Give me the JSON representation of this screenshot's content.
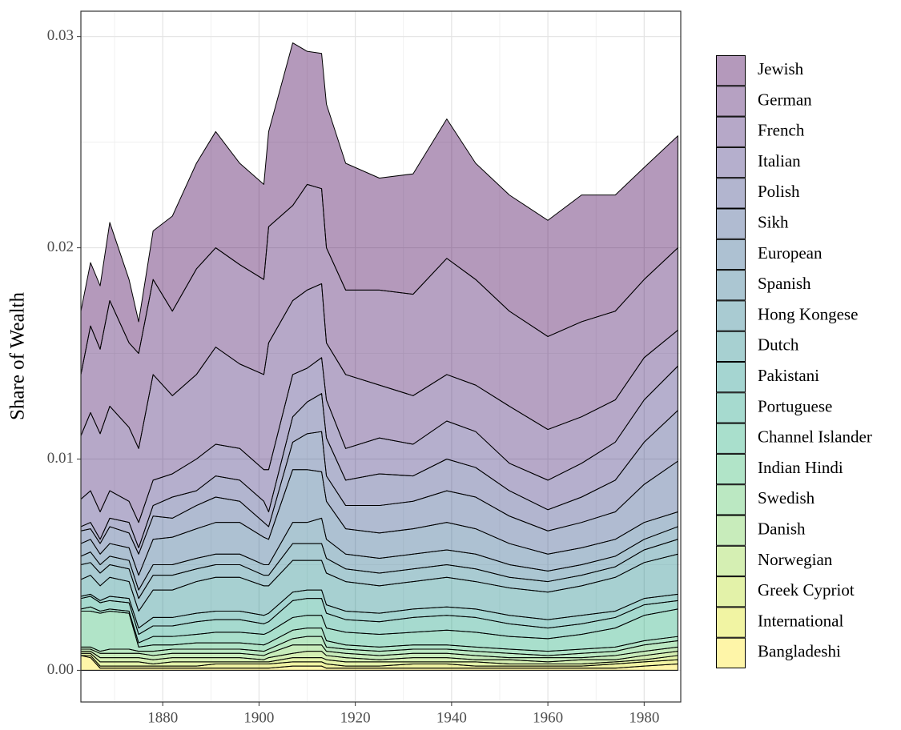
{
  "chart_data": {
    "type": "stacked_area",
    "y_label": "Share of Wealth",
    "x": [
      1863,
      1865,
      1867,
      1869,
      1873,
      1875,
      1878,
      1882,
      1887,
      1891,
      1896,
      1901,
      1902,
      1907,
      1910,
      1913,
      1914,
      1918,
      1925,
      1932,
      1939,
      1945,
      1952,
      1960,
      1967,
      1974,
      1980,
      1987
    ],
    "xlim": [
      1863,
      1987.6
    ],
    "ylim": [
      -0.0015,
      0.0312
    ],
    "xticks": [
      1880,
      1900,
      1920,
      1940,
      1960,
      1980
    ],
    "yticks": [
      {
        "value": 0,
        "label": "0.00"
      },
      0.01,
      0.02,
      0.03
    ],
    "x_minor_grid": [
      1870,
      1890,
      1910,
      1930,
      1950,
      1970
    ],
    "y_minor_grid": [
      0.005,
      0.015,
      0.025
    ],
    "grid": true,
    "fill_alpha": 0.4,
    "legend": "right",
    "series": [
      {
        "name": "Jewish",
        "color": "#440154",
        "values": [
          0.003,
          0.003,
          0.003,
          0.0037,
          0.003,
          0.0015,
          0.0023,
          0.0045,
          0.005,
          0.0055,
          0.0048,
          0.0045,
          0.0045,
          0.0077,
          0.0063,
          0.0064,
          0.0068,
          0.006,
          0.0053,
          0.0057,
          0.0066,
          0.0055,
          0.0055,
          0.0055,
          0.006,
          0.0055,
          0.0053,
          0.0053
        ]
      },
      {
        "name": "German",
        "color": "#481467",
        "values": [
          0.0029,
          0.0041,
          0.004,
          0.005,
          0.004,
          0.0045,
          0.0045,
          0.004,
          0.005,
          0.0047,
          0.0047,
          0.0045,
          0.0055,
          0.0045,
          0.005,
          0.0045,
          0.0045,
          0.004,
          0.0045,
          0.0048,
          0.0055,
          0.005,
          0.0045,
          0.0044,
          0.0045,
          0.0042,
          0.0037,
          0.0039
        ]
      },
      {
        "name": "French",
        "color": "#482576",
        "values": [
          0.003,
          0.0037,
          0.0037,
          0.004,
          0.0035,
          0.0035,
          0.005,
          0.0037,
          0.004,
          0.0046,
          0.004,
          0.0045,
          0.006,
          0.0035,
          0.0037,
          0.0035,
          0.0027,
          0.0035,
          0.0025,
          0.0023,
          0.0022,
          0.0022,
          0.0027,
          0.0024,
          0.0022,
          0.002,
          0.002,
          0.0017
        ]
      },
      {
        "name": "Italian",
        "color": "#453781",
        "values": [
          0.0013,
          0.0015,
          0.0013,
          0.0013,
          0.001,
          0.0012,
          0.0012,
          0.0011,
          0.0015,
          0.0015,
          0.0015,
          0.0015,
          0.002,
          0.002,
          0.0016,
          0.0017,
          0.0018,
          0.0015,
          0.0017,
          0.0015,
          0.0018,
          0.0017,
          0.0013,
          0.0014,
          0.0016,
          0.0018,
          0.002,
          0.0021
        ]
      },
      {
        "name": "Polish",
        "color": "#3F4788",
        "values": [
          0.0002,
          0.0003,
          0.0002,
          0.0004,
          0.0005,
          0.0003,
          0.0005,
          0.001,
          0.0007,
          0.001,
          0.001,
          0.001,
          0.0007,
          0.0012,
          0.0015,
          0.0018,
          0.0018,
          0.0012,
          0.0015,
          0.0012,
          0.0015,
          0.0014,
          0.0012,
          0.001,
          0.0012,
          0.0015,
          0.002,
          0.0024
        ]
      },
      {
        "name": "Sikh",
        "color": "#39558C",
        "values": [
          0.0006,
          0.0005,
          0.0005,
          0.0008,
          0.0007,
          0.001,
          0.0011,
          0.0009,
          0.0011,
          0.0012,
          0.001,
          0.0007,
          0.0006,
          0.0013,
          0.0017,
          0.0019,
          0.0012,
          0.0011,
          0.0013,
          0.0013,
          0.0015,
          0.0015,
          0.0013,
          0.0011,
          0.0012,
          0.0013,
          0.0018,
          0.0024
        ]
      },
      {
        "name": "European",
        "color": "#32648E",
        "values": [
          0.0006,
          0.0006,
          0.0005,
          0.0006,
          0.0006,
          0.0007,
          0.0012,
          0.0013,
          0.0014,
          0.0015,
          0.0015,
          0.0013,
          0.0012,
          0.0025,
          0.0025,
          0.0022,
          0.0018,
          0.0012,
          0.0012,
          0.0012,
          0.0013,
          0.0012,
          0.001,
          0.0008,
          0.0008,
          0.0008,
          0.0008,
          0.0007
        ]
      },
      {
        "name": "Spanish",
        "color": "#2D718E",
        "values": [
          0.0004,
          0.0005,
          0.0004,
          0.0004,
          0.0004,
          0.0004,
          0.0005,
          0.0005,
          0.0005,
          0.0005,
          0.0005,
          0.0005,
          0.0005,
          0.001,
          0.001,
          0.0012,
          0.0009,
          0.0007,
          0.0007,
          0.0007,
          0.0007,
          0.0007,
          0.0006,
          0.0005,
          0.0005,
          0.0005,
          0.0005,
          0.0006
        ]
      },
      {
        "name": "Hong Kongese",
        "color": "#287D8E",
        "values": [
          0.0007,
          0.0006,
          0.0006,
          0.0006,
          0.0006,
          0.0006,
          0.0007,
          0.0007,
          0.0006,
          0.0006,
          0.0006,
          0.0005,
          0.0005,
          0.0008,
          0.0008,
          0.0008,
          0.0007,
          0.0006,
          0.0006,
          0.0006,
          0.0006,
          0.0006,
          0.0005,
          0.0005,
          0.0005,
          0.0005,
          0.0006,
          0.0007
        ]
      },
      {
        "name": "Dutch",
        "color": "#238A8D",
        "values": [
          0.0008,
          0.0009,
          0.0007,
          0.0009,
          0.0008,
          0.0008,
          0.0013,
          0.0013,
          0.0015,
          0.0016,
          0.0016,
          0.0014,
          0.0013,
          0.0015,
          0.0014,
          0.0014,
          0.0015,
          0.0014,
          0.0013,
          0.0013,
          0.0014,
          0.0013,
          0.0013,
          0.0013,
          0.0014,
          0.0016,
          0.0017,
          0.0019
        ]
      },
      {
        "name": "Pakistani",
        "color": "#1F968B",
        "values": [
          0.0001,
          0.0001,
          0.0001,
          0.0002,
          0.0002,
          0.0003,
          0.0004,
          0.0004,
          0.0004,
          0.0004,
          0.0004,
          0.0004,
          0.0004,
          0.0004,
          0.0004,
          0.0004,
          0.0004,
          0.0004,
          0.0004,
          0.0004,
          0.0004,
          0.0004,
          0.0004,
          0.0004,
          0.0004,
          0.0003,
          0.0003,
          0.0003
        ]
      },
      {
        "name": "Portuguese",
        "color": "#20A386",
        "values": [
          0.0005,
          0.0005,
          0.0004,
          0.0004,
          0.0004,
          0.0004,
          0.0005,
          0.0005,
          0.0006,
          0.0006,
          0.0006,
          0.0005,
          0.0005,
          0.0008,
          0.0008,
          0.0008,
          0.0007,
          0.0006,
          0.0006,
          0.0007,
          0.0007,
          0.0007,
          0.0006,
          0.0005,
          0.0005,
          0.0005,
          0.0005,
          0.0004
        ]
      },
      {
        "name": "Channel Islander",
        "color": "#29AF7F",
        "values": [
          0.0001,
          0.0002,
          0.0001,
          0.0001,
          0.0001,
          0.0002,
          0.0004,
          0.0004,
          0.0004,
          0.0005,
          0.0005,
          0.0005,
          0.0005,
          0.0006,
          0.0006,
          0.0006,
          0.0006,
          0.0006,
          0.0006,
          0.0006,
          0.0007,
          0.0007,
          0.0006,
          0.0006,
          0.0007,
          0.0009,
          0.0012,
          0.0013
        ]
      },
      {
        "name": "Indian Hindi",
        "color": "#3CBC75",
        "values": [
          0.0017,
          0.0017,
          0.0018,
          0.0018,
          0.0017,
          0.0002,
          0.0003,
          0.0002,
          0.0003,
          0.0003,
          0.0003,
          0.0003,
          0.0003,
          0.0004,
          0.0004,
          0.0004,
          0.0003,
          0.0002,
          0.0002,
          0.0002,
          0.0002,
          0.0002,
          0.0002,
          0.0002,
          0.0002,
          0.0002,
          0.0002,
          0.0002
        ]
      },
      {
        "name": "Swedish",
        "color": "#56C667",
        "values": [
          0.0001,
          0.0001,
          0.0001,
          0.0002,
          0.0002,
          0.0001,
          0.0002,
          0.0002,
          0.0002,
          0.0002,
          0.0002,
          0.0002,
          0.0002,
          0.0003,
          0.0004,
          0.0004,
          0.0002,
          0.0002,
          0.0002,
          0.0002,
          0.0002,
          0.0002,
          0.0002,
          0.0001,
          0.0002,
          0.0002,
          0.0003,
          0.0003
        ]
      },
      {
        "name": "Danish",
        "color": "#75D054",
        "values": [
          0.0001,
          0.0001,
          0.0002,
          0.0002,
          0.0002,
          0.0002,
          0.0002,
          0.0002,
          0.0002,
          0.0002,
          0.0002,
          0.0002,
          0.0002,
          0.0004,
          0.0003,
          0.0003,
          0.0002,
          0.0002,
          0.0002,
          0.0002,
          0.0002,
          0.0002,
          0.0001,
          0.0002,
          0.0001,
          0.0002,
          0.0002,
          0.0002
        ]
      },
      {
        "name": "Norwegian",
        "color": "#95D840",
        "values": [
          0.0001,
          0.0001,
          0.0002,
          0.0002,
          0.0002,
          0.0002,
          0.0002,
          0.0002,
          0.0002,
          0.0002,
          0.0002,
          0.0001,
          0.0002,
          0.0002,
          0.0003,
          0.0003,
          0.0002,
          0.0002,
          0.0001,
          0.0002,
          0.0002,
          0.0001,
          0.0002,
          0.0001,
          0.0002,
          0.0001,
          0.0002,
          0.0002
        ]
      },
      {
        "name": "Greek Cypriot",
        "color": "#BADE28",
        "values": [
          0.0001,
          0.0001,
          0.0002,
          0.0002,
          0.0002,
          0.0002,
          0.0001,
          0.0002,
          0.0002,
          0.0001,
          0.0001,
          0.0001,
          0.0001,
          0.0002,
          0.0002,
          0.0002,
          0.0002,
          0.0002,
          0.0002,
          0.0001,
          0.0001,
          0.0002,
          0.0001,
          0.0001,
          0.0001,
          0.0001,
          0.0001,
          0.0002
        ]
      },
      {
        "name": "International",
        "color": "#DDE318",
        "values": [
          0,
          0.0001,
          0.0001,
          0.0001,
          0.0001,
          0.0001,
          0.0001,
          0.0001,
          0.0001,
          0.0002,
          0.0002,
          0.0002,
          0.0002,
          0.0002,
          0.0002,
          0.0002,
          0.0002,
          0.0001,
          0.0001,
          0.0002,
          0.0002,
          0.0001,
          0.0001,
          0.0001,
          0.0001,
          0.0002,
          0.0002,
          0.0002
        ]
      },
      {
        "name": "Bangladeshi",
        "color": "#FDE725",
        "values": [
          0.0007,
          0.0006,
          0.0001,
          0.0001,
          0.0001,
          0.0001,
          0.0001,
          0.0001,
          0.0001,
          0.0001,
          0.0001,
          0.0001,
          0.0001,
          0.0002,
          0.0002,
          0.0002,
          0.0001,
          0.0001,
          0.0001,
          0.0001,
          0.0001,
          0.0001,
          0.0001,
          0.0001,
          0.0001,
          0.0001,
          0.0002,
          0.0003
        ]
      }
    ]
  }
}
